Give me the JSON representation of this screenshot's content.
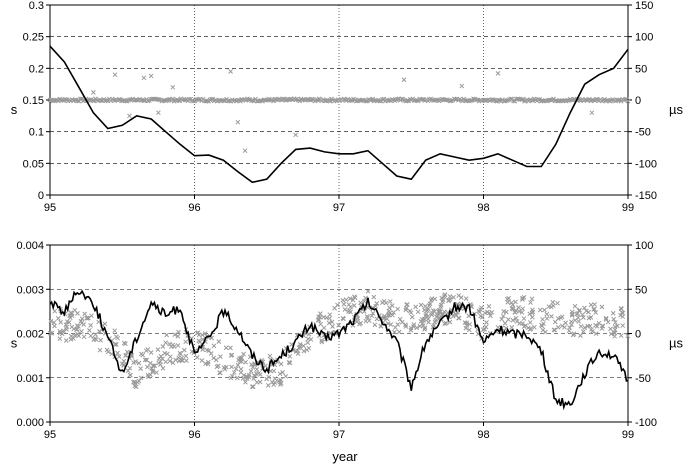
{
  "chart_data": [
    {
      "type": "line+scatter",
      "x_axis": {
        "range": [
          95,
          99
        ],
        "ticks": [
          "95",
          "96",
          "97",
          "98",
          "99"
        ]
      },
      "y_left": {
        "label": "s",
        "range": [
          0,
          0.3
        ],
        "ticks": [
          "0",
          "0.05",
          "0.1",
          "0.15",
          "0.2",
          "0.25",
          "0.3"
        ]
      },
      "y_right": {
        "label": "µs",
        "range": [
          -150,
          150
        ],
        "ticks": [
          "-150",
          "-100",
          "-50",
          "0",
          "50",
          "100",
          "150"
        ]
      },
      "grid": {
        "horizontal": "dashed",
        "vertical": "dotted"
      },
      "line_color": "#000000",
      "marker_color": "#999999",
      "line": {
        "axis": "left",
        "x": [
          95.0,
          95.1,
          95.2,
          95.3,
          95.4,
          95.5,
          95.6,
          95.7,
          95.8,
          95.9,
          96.0,
          96.1,
          96.2,
          96.3,
          96.4,
          96.5,
          96.6,
          96.7,
          96.8,
          96.9,
          97.0,
          97.1,
          97.2,
          97.3,
          97.4,
          97.5,
          97.6,
          97.7,
          97.8,
          97.9,
          98.0,
          98.1,
          98.2,
          98.3,
          98.4,
          98.5,
          98.6,
          98.7,
          98.8,
          98.9,
          99.0
        ],
        "y": [
          0.235,
          0.21,
          0.17,
          0.13,
          0.105,
          0.11,
          0.125,
          0.12,
          0.1,
          0.08,
          0.062,
          0.063,
          0.055,
          0.037,
          0.02,
          0.025,
          0.05,
          0.072,
          0.074,
          0.068,
          0.065,
          0.065,
          0.07,
          0.05,
          0.03,
          0.025,
          0.055,
          0.065,
          0.06,
          0.055,
          0.058,
          0.065,
          0.055,
          0.045,
          0.045,
          0.08,
          0.13,
          0.175,
          0.19,
          0.2,
          0.23
        ]
      },
      "scatter": {
        "axis": "right",
        "baseline": 0,
        "outliers_x": [
          95.3,
          95.45,
          95.55,
          95.65,
          95.7,
          95.75,
          95.85,
          96.25,
          96.3,
          96.35,
          96.7,
          97.45,
          97.85,
          98.1,
          98.75
        ],
        "outliers_y": [
          12,
          40,
          -25,
          35,
          38,
          -20,
          20,
          45,
          -35,
          -80,
          -55,
          32,
          22,
          42,
          -20
        ]
      }
    },
    {
      "type": "line+scatter",
      "x_axis": {
        "range": [
          95,
          99
        ],
        "ticks": [
          "95",
          "96",
          "97",
          "98",
          "99"
        ],
        "label": "year"
      },
      "y_left": {
        "label": "s",
        "range": [
          0,
          0.004
        ],
        "ticks": [
          "0.000",
          "0.001",
          "0.002",
          "0.003",
          "0.004"
        ]
      },
      "y_right": {
        "label": "µs",
        "range": [
          -100,
          100
        ],
        "ticks": [
          "-100",
          "-50",
          "0",
          "50",
          "100"
        ]
      },
      "grid": {
        "horizontal": "dashed",
        "vertical": "dotted"
      },
      "line_color": "#000000",
      "marker_color": "#999999",
      "line": {
        "axis": "left",
        "x": [
          95.0,
          95.1,
          95.2,
          95.3,
          95.4,
          95.5,
          95.6,
          95.7,
          95.8,
          95.9,
          96.0,
          96.1,
          96.2,
          96.3,
          96.4,
          96.5,
          96.6,
          96.7,
          96.8,
          96.9,
          97.0,
          97.1,
          97.2,
          97.3,
          97.4,
          97.5,
          97.6,
          97.7,
          97.8,
          97.9,
          98.0,
          98.1,
          98.2,
          98.3,
          98.4,
          98.5,
          98.6,
          98.7,
          98.8,
          98.9,
          99.0
        ],
        "y": [
          0.0027,
          0.0025,
          0.003,
          0.0027,
          0.0019,
          0.0011,
          0.0019,
          0.0027,
          0.0024,
          0.0026,
          0.0015,
          0.0019,
          0.0025,
          0.0021,
          0.0015,
          0.0012,
          0.0015,
          0.0018,
          0.0022,
          0.0019,
          0.002,
          0.0023,
          0.0027,
          0.0023,
          0.0018,
          0.0008,
          0.0018,
          0.0022,
          0.0026,
          0.0026,
          0.0018,
          0.0021,
          0.002,
          0.002,
          0.0016,
          0.0005,
          0.0004,
          0.0011,
          0.0016,
          0.0015,
          0.0009
        ]
      },
      "scatter": {
        "axis": "right",
        "x": [
          95.0,
          95.2,
          95.4,
          95.6,
          95.8,
          96.0,
          96.2,
          96.4,
          96.6,
          96.8,
          97.0,
          97.2,
          97.4,
          97.6,
          97.8,
          98.0,
          98.2,
          98.4,
          98.6,
          98.8,
          99.0
        ],
        "y": [
          10,
          10,
          -5,
          -45,
          -20,
          -10,
          -30,
          -45,
          -40,
          0,
          20,
          30,
          15,
          20,
          30,
          10,
          25,
          20,
          15,
          15,
          10
        ],
        "spread": 18
      }
    }
  ],
  "xlabel": "year"
}
